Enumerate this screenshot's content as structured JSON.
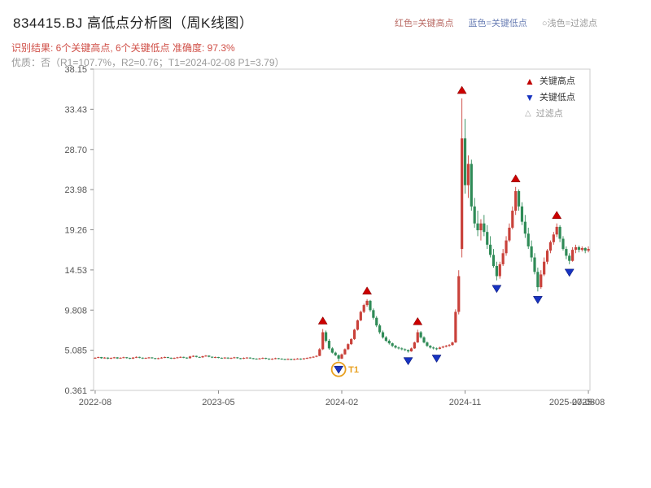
{
  "header": {
    "title": "834415.BJ 高低点分析图（周K线图）",
    "legend_high": "红色=关键高点",
    "legend_low": "蓝色=关键低点",
    "legend_filter": "○浅色=过滤点",
    "subtitle_result": "识别结果: 6个关键高点, 6个关键低点   准确度: 97.3%",
    "subtitle_quality": "优质：否（R1=107.7%，R2=0.76；T1=2024-02-08 P1=3.79）"
  },
  "plot_legend": {
    "high_label": "关键高点",
    "low_label": "关键低点",
    "filter_label": "过滤点",
    "up_glyph": "▲",
    "down_glyph": "▼",
    "open_glyph": "△"
  },
  "colors": {
    "up": "#c9413a",
    "down": "#2f8b57",
    "key_high": "#cc0000",
    "key_low": "#1733c0",
    "t1": "#e8a020",
    "axis": "#cccccc",
    "tick": "#888888"
  },
  "chart_data": {
    "type": "candlestick",
    "title": "834415.BJ 高低点分析图（周K线图）",
    "x_tick_labels": [
      "2022-08",
      "2023-05",
      "2024-02",
      "2024-11",
      "2025-08"
    ],
    "x_tick_weeks": [
      0,
      39,
      78,
      117,
      156
    ],
    "x_overlap_label": "2025-07-08",
    "ylim": [
      0.361,
      38.15
    ],
    "y_ticks": [
      38.15,
      33.43,
      28.7,
      23.98,
      19.26,
      14.53,
      9.808,
      5.085,
      0.361
    ],
    "y_tick_labels": [
      "38.15",
      "33.43",
      "28.70",
      "23.98",
      "19.26",
      "14.53",
      "9.808",
      "5.085",
      "0.361"
    ],
    "candles": [
      [
        4.15,
        4.26,
        4.08,
        4.2
      ],
      [
        4.2,
        4.33,
        4.15,
        4.28
      ],
      [
        4.28,
        4.3,
        4.08,
        4.15
      ],
      [
        4.15,
        4.28,
        4.1,
        4.22
      ],
      [
        4.22,
        4.25,
        4.04,
        4.1
      ],
      [
        4.1,
        4.24,
        4.05,
        4.18
      ],
      [
        4.18,
        4.3,
        4.12,
        4.25
      ],
      [
        4.25,
        4.28,
        4.06,
        4.12
      ],
      [
        4.12,
        4.26,
        4.08,
        4.2
      ],
      [
        4.2,
        4.32,
        4.14,
        4.26
      ],
      [
        4.26,
        4.28,
        4.1,
        4.18
      ],
      [
        4.18,
        4.22,
        4.04,
        4.1
      ],
      [
        4.1,
        4.28,
        4.06,
        4.22
      ],
      [
        4.22,
        4.36,
        4.16,
        4.3
      ],
      [
        4.3,
        4.33,
        4.14,
        4.21
      ],
      [
        4.21,
        4.24,
        4.06,
        4.12
      ],
      [
        4.12,
        4.24,
        4.08,
        4.18
      ],
      [
        4.18,
        4.3,
        4.12,
        4.24
      ],
      [
        4.24,
        4.27,
        4.1,
        4.16
      ],
      [
        4.16,
        4.19,
        4.02,
        4.08
      ],
      [
        4.08,
        4.21,
        4.02,
        4.15
      ],
      [
        4.15,
        4.28,
        4.1,
        4.22
      ],
      [
        4.22,
        4.34,
        4.16,
        4.28
      ],
      [
        4.28,
        4.31,
        4.14,
        4.2
      ],
      [
        4.2,
        4.23,
        4.05,
        4.12
      ],
      [
        4.12,
        4.24,
        4.06,
        4.18
      ],
      [
        4.18,
        4.31,
        4.12,
        4.25
      ],
      [
        4.25,
        4.36,
        4.18,
        4.3
      ],
      [
        4.3,
        4.33,
        4.15,
        4.22
      ],
      [
        4.22,
        4.25,
        4.08,
        4.15
      ],
      [
        4.15,
        4.41,
        4.1,
        4.35
      ],
      [
        4.35,
        4.48,
        4.28,
        4.42
      ],
      [
        4.42,
        4.45,
        4.24,
        4.3
      ],
      [
        4.3,
        4.33,
        4.18,
        4.25
      ],
      [
        4.25,
        4.44,
        4.2,
        4.38
      ],
      [
        4.38,
        4.52,
        4.32,
        4.45
      ],
      [
        4.45,
        4.48,
        4.26,
        4.32
      ],
      [
        4.32,
        4.35,
        4.16,
        4.22
      ],
      [
        4.22,
        4.34,
        4.16,
        4.28
      ],
      [
        4.28,
        4.31,
        4.14,
        4.2
      ],
      [
        4.2,
        4.23,
        4.08,
        4.15
      ],
      [
        4.15,
        4.28,
        4.1,
        4.22
      ],
      [
        4.22,
        4.25,
        4.06,
        4.12
      ],
      [
        4.12,
        4.24,
        4.06,
        4.18
      ],
      [
        4.18,
        4.31,
        4.12,
        4.25
      ],
      [
        4.25,
        4.28,
        4.09,
        4.15
      ],
      [
        4.15,
        4.18,
        4.02,
        4.1
      ],
      [
        4.1,
        4.24,
        4.05,
        4.18
      ],
      [
        4.18,
        4.28,
        4.12,
        4.22
      ],
      [
        4.22,
        4.25,
        4.08,
        4.15
      ],
      [
        4.15,
        4.18,
        4.02,
        4.1
      ],
      [
        4.1,
        4.13,
        3.98,
        4.05
      ],
      [
        4.05,
        4.18,
        4.0,
        4.12
      ],
      [
        4.12,
        4.24,
        4.06,
        4.18
      ],
      [
        4.18,
        4.21,
        4.02,
        4.1
      ],
      [
        4.1,
        4.13,
        3.95,
        4.02
      ],
      [
        4.02,
        4.14,
        3.96,
        4.08
      ],
      [
        4.08,
        4.21,
        4.02,
        4.15
      ],
      [
        4.15,
        4.18,
        4.02,
        4.1
      ],
      [
        4.1,
        4.13,
        3.97,
        4.05
      ],
      [
        4.05,
        4.08,
        3.92,
        4.0
      ],
      [
        4.0,
        4.12,
        3.94,
        4.06
      ],
      [
        4.06,
        4.09,
        3.9,
        3.98
      ],
      [
        3.98,
        4.11,
        3.92,
        4.05
      ],
      [
        4.05,
        4.16,
        3.99,
        4.1
      ],
      [
        4.1,
        4.13,
        3.96,
        4.04
      ],
      [
        4.04,
        4.18,
        3.98,
        4.12
      ],
      [
        4.12,
        4.24,
        4.06,
        4.18
      ],
      [
        4.18,
        4.31,
        4.12,
        4.25
      ],
      [
        4.25,
        4.38,
        4.19,
        4.32
      ],
      [
        4.32,
        4.48,
        4.26,
        4.42
      ],
      [
        4.42,
        5.35,
        4.38,
        5.2
      ],
      [
        5.2,
        7.58,
        5.1,
        7.2
      ],
      [
        7.2,
        7.4,
        6.0,
        6.2
      ],
      [
        6.2,
        6.4,
        5.15,
        5.3
      ],
      [
        5.3,
        5.45,
        4.7,
        4.8
      ],
      [
        4.8,
        4.92,
        4.4,
        4.5
      ],
      [
        4.5,
        4.6,
        3.79,
        4.1
      ],
      [
        4.1,
        4.7,
        4.05,
        4.6
      ],
      [
        4.6,
        5.3,
        4.55,
        5.2
      ],
      [
        5.2,
        5.9,
        5.1,
        5.8
      ],
      [
        5.8,
        6.5,
        5.7,
        6.4
      ],
      [
        6.4,
        7.6,
        6.3,
        7.5
      ],
      [
        7.5,
        8.7,
        7.4,
        8.6
      ],
      [
        8.6,
        9.75,
        8.5,
        9.6
      ],
      [
        9.6,
        10.55,
        9.45,
        10.4
      ],
      [
        10.4,
        11.1,
        10.2,
        10.9
      ],
      [
        10.9,
        11.0,
        9.6,
        9.8
      ],
      [
        9.8,
        10.0,
        8.7,
        8.9
      ],
      [
        8.9,
        9.1,
        7.8,
        8.0
      ],
      [
        8.0,
        8.2,
        7.0,
        7.2
      ],
      [
        7.2,
        7.4,
        6.45,
        6.6
      ],
      [
        6.6,
        6.75,
        6.05,
        6.2
      ],
      [
        6.2,
        6.35,
        5.75,
        5.9
      ],
      [
        5.9,
        6.0,
        5.45,
        5.6
      ],
      [
        5.6,
        5.72,
        5.28,
        5.4
      ],
      [
        5.4,
        5.52,
        5.18,
        5.3
      ],
      [
        5.3,
        5.42,
        5.08,
        5.2
      ],
      [
        5.2,
        5.3,
        5.0,
        5.1
      ],
      [
        5.1,
        5.18,
        4.8,
        4.95
      ],
      [
        4.95,
        5.4,
        4.9,
        5.3
      ],
      [
        5.3,
        6.1,
        5.25,
        6.0
      ],
      [
        6.0,
        7.5,
        5.95,
        7.2
      ],
      [
        7.2,
        7.35,
        6.45,
        6.6
      ],
      [
        6.6,
        6.72,
        5.9,
        6.0
      ],
      [
        6.0,
        6.12,
        5.48,
        5.6
      ],
      [
        5.6,
        5.7,
        5.28,
        5.4
      ],
      [
        5.4,
        5.52,
        5.18,
        5.3
      ],
      [
        5.3,
        5.4,
        5.1,
        5.25
      ],
      [
        5.25,
        5.5,
        5.2,
        5.4
      ],
      [
        5.4,
        5.62,
        5.32,
        5.5
      ],
      [
        5.5,
        5.72,
        5.42,
        5.6
      ],
      [
        5.6,
        5.82,
        5.5,
        5.7
      ],
      [
        5.7,
        6.1,
        5.62,
        6.0
      ],
      [
        6.0,
        9.9,
        5.95,
        9.6
      ],
      [
        9.6,
        14.5,
        9.3,
        13.8
      ],
      [
        17.0,
        34.7,
        16.0,
        30.0
      ],
      [
        30.0,
        32.3,
        23.5,
        24.5
      ],
      [
        24.5,
        28.0,
        23.0,
        27.0
      ],
      [
        27.0,
        27.5,
        21.5,
        22.0
      ],
      [
        22.0,
        23.0,
        19.5,
        20.0
      ],
      [
        20.0,
        21.5,
        18.5,
        19.2
      ],
      [
        19.2,
        20.5,
        18.0,
        20.0
      ],
      [
        20.0,
        21.0,
        18.5,
        19.0
      ],
      [
        19.0,
        19.8,
        17.0,
        17.5
      ],
      [
        17.5,
        18.5,
        16.0,
        16.3
      ],
      [
        16.3,
        17.0,
        14.8,
        15.0
      ],
      [
        15.0,
        15.5,
        13.3,
        13.8
      ],
      [
        13.8,
        15.5,
        13.5,
        15.2
      ],
      [
        15.2,
        17.0,
        15.0,
        16.5
      ],
      [
        16.5,
        18.5,
        16.2,
        18.0
      ],
      [
        18.0,
        20.0,
        17.8,
        19.5
      ],
      [
        19.5,
        22.0,
        19.3,
        21.5
      ],
      [
        21.5,
        24.3,
        21.0,
        23.8
      ],
      [
        23.8,
        24.0,
        21.5,
        22.0
      ],
      [
        22.0,
        22.5,
        19.8,
        20.2
      ],
      [
        20.2,
        21.0,
        18.3,
        18.8
      ],
      [
        18.8,
        19.5,
        17.0,
        17.3
      ],
      [
        17.3,
        18.0,
        15.5,
        16.0
      ],
      [
        16.0,
        16.5,
        14.0,
        14.3
      ],
      [
        14.3,
        14.8,
        12.0,
        12.5
      ],
      [
        12.5,
        14.5,
        12.3,
        14.0
      ],
      [
        14.0,
        16.0,
        13.8,
        15.5
      ],
      [
        15.5,
        17.0,
        15.2,
        16.8
      ],
      [
        16.8,
        18.0,
        16.5,
        17.8
      ],
      [
        17.8,
        19.0,
        17.5,
        18.7
      ],
      [
        18.7,
        20.0,
        18.4,
        19.6
      ],
      [
        19.6,
        19.8,
        17.8,
        18.2
      ],
      [
        18.2,
        18.5,
        16.8,
        17.0
      ],
      [
        17.0,
        17.3,
        15.8,
        16.2
      ],
      [
        16.2,
        16.5,
        15.2,
        15.6
      ],
      [
        15.6,
        17.2,
        15.5,
        16.9
      ],
      [
        16.9,
        17.5,
        16.5,
        17.2
      ],
      [
        17.2,
        17.4,
        16.6,
        16.9
      ],
      [
        16.9,
        17.3,
        16.7,
        17.1
      ],
      [
        17.1,
        17.2,
        16.5,
        16.8
      ],
      [
        16.8,
        17.3,
        16.6,
        17.0
      ]
    ],
    "key_highs": [
      {
        "week": 72,
        "price": 7.58
      },
      {
        "week": 86,
        "price": 11.1
      },
      {
        "week": 102,
        "price": 7.5
      },
      {
        "week": 116,
        "price": 34.7
      },
      {
        "week": 133,
        "price": 24.3
      },
      {
        "week": 146,
        "price": 20.0
      }
    ],
    "key_lows": [
      {
        "week": 77,
        "price": 3.79
      },
      {
        "week": 99,
        "price": 4.8
      },
      {
        "week": 108,
        "price": 5.1
      },
      {
        "week": 127,
        "price": 13.3
      },
      {
        "week": 140,
        "price": 12.0
      },
      {
        "week": 150,
        "price": 15.2
      }
    ],
    "t1": {
      "week": 77,
      "price": 3.79,
      "label": "T1"
    }
  }
}
